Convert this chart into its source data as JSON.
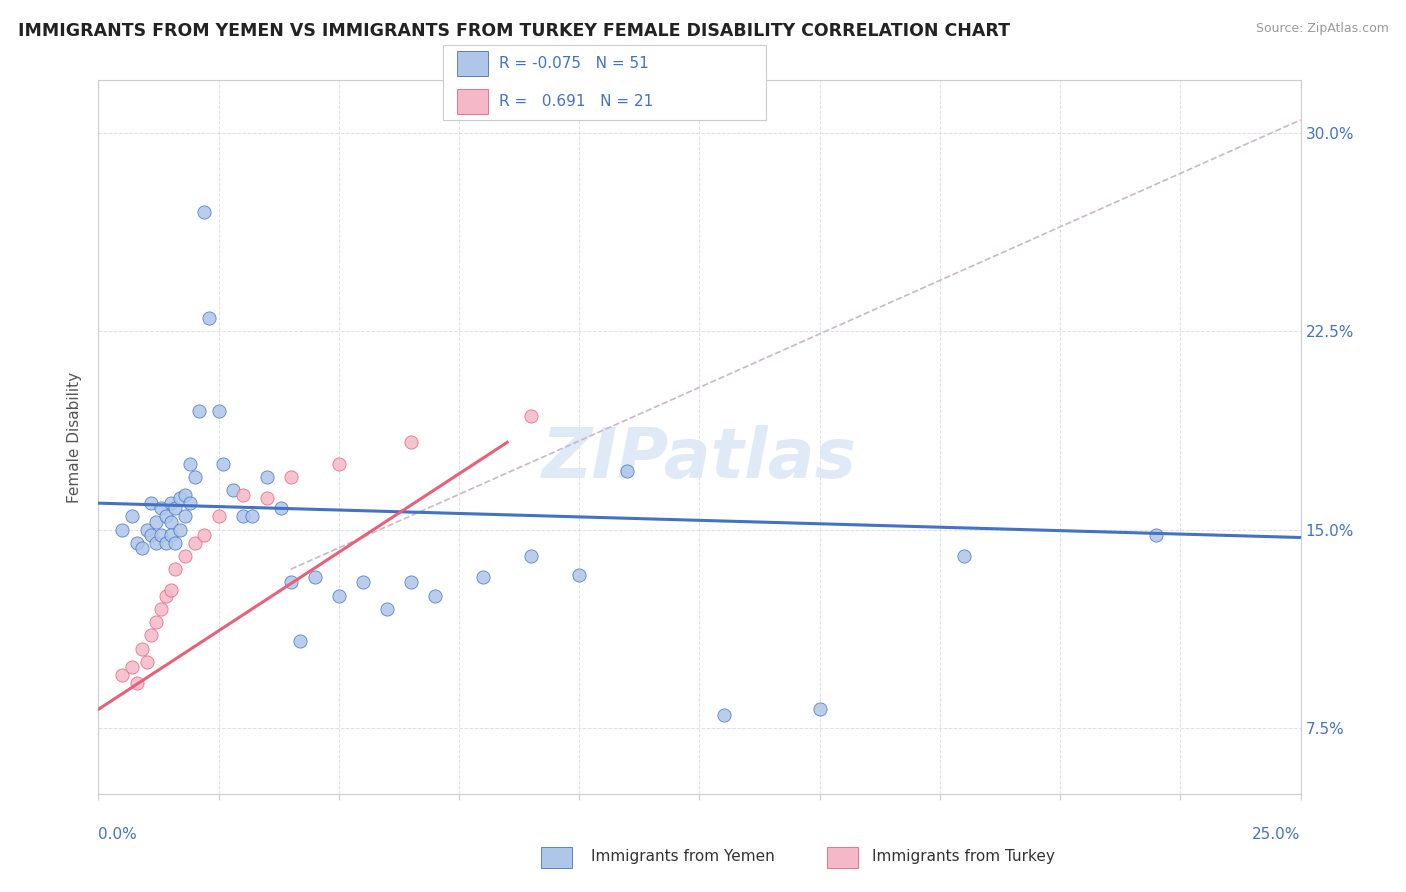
{
  "title": "IMMIGRANTS FROM YEMEN VS IMMIGRANTS FROM TURKEY FEMALE DISABILITY CORRELATION CHART",
  "source": "Source: ZipAtlas.com",
  "ylabel": "Female Disability",
  "x_min": 0.0,
  "x_max": 0.25,
  "y_min": 0.05,
  "y_max": 0.32,
  "y_ticks": [
    0.075,
    0.15,
    0.225,
    0.3
  ],
  "y_tick_labels": [
    "7.5%",
    "15.0%",
    "22.5%",
    "30.0%"
  ],
  "color_yemen": "#aec6e8",
  "color_turkey": "#f4b8c8",
  "line_color_yemen": "#4472c4",
  "line_color_turkey": "#e8607a",
  "line_color_ref": "#c8b8c8",
  "background_color": "#ffffff",
  "watermark": "ZIPatlas",
  "yemen_x": [
    0.005,
    0.007,
    0.008,
    0.009,
    0.01,
    0.011,
    0.011,
    0.012,
    0.012,
    0.013,
    0.013,
    0.014,
    0.014,
    0.015,
    0.015,
    0.015,
    0.016,
    0.016,
    0.017,
    0.017,
    0.018,
    0.018,
    0.019,
    0.019,
    0.02,
    0.021,
    0.022,
    0.023,
    0.025,
    0.026,
    0.028,
    0.03,
    0.032,
    0.035,
    0.038,
    0.04,
    0.042,
    0.045,
    0.05,
    0.055,
    0.06,
    0.065,
    0.07,
    0.08,
    0.09,
    0.1,
    0.11,
    0.13,
    0.15,
    0.18,
    0.22
  ],
  "yemen_y": [
    0.15,
    0.155,
    0.145,
    0.143,
    0.15,
    0.16,
    0.148,
    0.153,
    0.145,
    0.158,
    0.148,
    0.155,
    0.145,
    0.16,
    0.153,
    0.148,
    0.158,
    0.145,
    0.162,
    0.15,
    0.163,
    0.155,
    0.16,
    0.175,
    0.17,
    0.195,
    0.27,
    0.23,
    0.195,
    0.175,
    0.165,
    0.155,
    0.155,
    0.17,
    0.158,
    0.13,
    0.108,
    0.132,
    0.125,
    0.13,
    0.12,
    0.13,
    0.125,
    0.132,
    0.14,
    0.133,
    0.172,
    0.08,
    0.082,
    0.14,
    0.148
  ],
  "turkey_x": [
    0.005,
    0.007,
    0.008,
    0.009,
    0.01,
    0.011,
    0.012,
    0.013,
    0.014,
    0.015,
    0.016,
    0.018,
    0.02,
    0.022,
    0.025,
    0.03,
    0.035,
    0.04,
    0.05,
    0.065,
    0.09
  ],
  "turkey_y": [
    0.095,
    0.098,
    0.092,
    0.105,
    0.1,
    0.11,
    0.115,
    0.12,
    0.125,
    0.127,
    0.135,
    0.14,
    0.145,
    0.148,
    0.155,
    0.163,
    0.162,
    0.17,
    0.175,
    0.183,
    0.193
  ],
  "yemen_trend_x": [
    0.0,
    0.25
  ],
  "yemen_trend_y": [
    0.16,
    0.147
  ],
  "turkey_trend_x": [
    0.0,
    0.085
  ],
  "turkey_trend_y": [
    0.082,
    0.183
  ],
  "ref_line_x": [
    0.04,
    0.25
  ],
  "ref_line_y": [
    0.135,
    0.305
  ]
}
